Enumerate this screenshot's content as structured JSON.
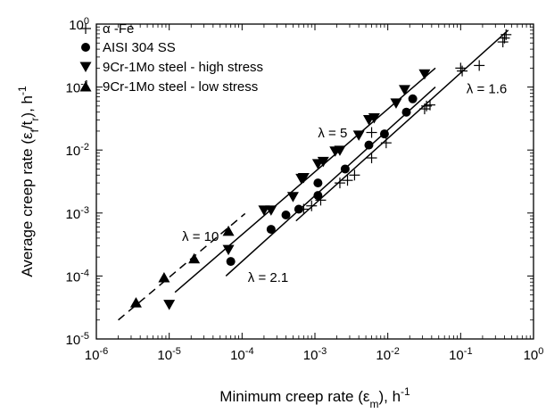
{
  "chart_data": {
    "type": "scatter",
    "xscale": "log",
    "yscale": "log",
    "xlim": [
      1e-06,
      1
    ],
    "ylim": [
      1e-05,
      1
    ],
    "grid": false,
    "legend_position": "top-left",
    "x_ticks": [
      {
        "base": "10",
        "exp": "-6",
        "value": 1e-06
      },
      {
        "base": "10",
        "exp": "-5",
        "value": 1e-05
      },
      {
        "base": "10",
        "exp": "-4",
        "value": 0.0001
      },
      {
        "base": "10",
        "exp": "-3",
        "value": 0.001
      },
      {
        "base": "10",
        "exp": "-2",
        "value": 0.01
      },
      {
        "base": "10",
        "exp": "-1",
        "value": 0.1
      },
      {
        "base": "10",
        "exp": "0",
        "value": 1
      }
    ],
    "y_ticks": [
      {
        "base": "10",
        "exp": "-5",
        "value": 1e-05
      },
      {
        "base": "10",
        "exp": "-4",
        "value": 0.0001
      },
      {
        "base": "10",
        "exp": "-3",
        "value": 0.001
      },
      {
        "base": "10",
        "exp": "-2",
        "value": 0.01
      },
      {
        "base": "10",
        "exp": "-1",
        "value": 0.1
      },
      {
        "base": "10",
        "exp": "0",
        "value": 1
      }
    ],
    "xlabel": {
      "pre": "Minimum creep rate (",
      "sym": "ε",
      "sub": "m",
      "post": "), h",
      "unit_exp": "-1"
    },
    "ylabel": {
      "pre": "Average creep rate (ε",
      "sub": "f",
      "mid": "/t",
      "sub2": "r",
      "post": "), h",
      "unit_exp": "-1"
    },
    "series": [
      {
        "name": "α -Fe",
        "marker": "plus",
        "points": [
          [
            0.0007,
            0.00115
          ],
          [
            0.0009,
            0.0013
          ],
          [
            0.0012,
            0.0016
          ],
          [
            0.0022,
            0.003
          ],
          [
            0.0028,
            0.0033
          ],
          [
            0.0035,
            0.004
          ],
          [
            0.006,
            0.0075
          ],
          [
            0.006,
            0.019
          ],
          [
            0.0095,
            0.013
          ],
          [
            0.032,
            0.045
          ],
          [
            0.034,
            0.05
          ],
          [
            0.038,
            0.052
          ],
          [
            0.1,
            0.2
          ],
          [
            0.105,
            0.18
          ],
          [
            0.18,
            0.22
          ],
          [
            0.38,
            0.52
          ],
          [
            0.4,
            0.6
          ],
          [
            0.42,
            0.68
          ]
        ]
      },
      {
        "name": "AISI 304 SS",
        "marker": "circle",
        "points": [
          [
            7e-05,
            0.00017
          ],
          [
            0.00025,
            0.00055
          ],
          [
            0.0004,
            0.00093
          ],
          [
            0.0006,
            0.00115
          ],
          [
            0.0011,
            0.003
          ],
          [
            0.0011,
            0.0019
          ],
          [
            0.0026,
            0.005
          ],
          [
            0.0055,
            0.012
          ],
          [
            0.009,
            0.018
          ],
          [
            0.018,
            0.04
          ],
          [
            0.022,
            0.065
          ]
        ]
      },
      {
        "name": "9Cr-1Mo steel - high stress",
        "marker": "triangle-down",
        "points": [
          [
            1e-05,
            3.5e-05
          ],
          [
            6.5e-05,
            0.00026
          ],
          [
            0.0002,
            0.0011
          ],
          [
            0.00025,
            0.0011
          ],
          [
            0.0005,
            0.0018
          ],
          [
            0.00065,
            0.0035
          ],
          [
            0.0007,
            0.0036
          ],
          [
            0.0011,
            0.006
          ],
          [
            0.0013,
            0.0065
          ],
          [
            0.0019,
            0.0095
          ],
          [
            0.0022,
            0.0098
          ],
          [
            0.004,
            0.017
          ],
          [
            0.0055,
            0.03
          ],
          [
            0.0065,
            0.032
          ],
          [
            0.013,
            0.055
          ],
          [
            0.017,
            0.09
          ],
          [
            0.032,
            0.16
          ]
        ]
      },
      {
        "name": "9Cr-1Mo steel - low stress",
        "marker": "triangle-up",
        "points": [
          [
            3.5e-06,
            3.8e-05
          ],
          [
            8.5e-06,
            9.5e-05
          ],
          [
            2.2e-05,
            0.00019
          ],
          [
            6.5e-05,
            0.00052
          ]
        ]
      }
    ],
    "fit_lines": [
      {
        "label": "λ = 10",
        "dash": true,
        "from": [
          2e-06,
          2e-05
        ],
        "to": [
          0.00011,
          0.00098
        ]
      },
      {
        "label": "λ = 5",
        "dash": false,
        "from": [
          1.2e-05,
          5.5e-05
        ],
        "to": [
          0.045,
          0.2
        ]
      },
      {
        "label": "λ = 2.1",
        "dash": false,
        "from": [
          6e-05,
          0.0001
        ],
        "to": [
          0.045,
          0.1
        ]
      },
      {
        "label": "λ = 1.6",
        "dash": false,
        "from": [
          0.00055,
          0.00075
        ],
        "to": [
          0.45,
          0.8
        ]
      }
    ],
    "annotations": [
      {
        "text": "λ = 10",
        "at": [
          1.5e-05,
          0.00036
        ]
      },
      {
        "text": "λ = 5",
        "at": [
          0.0011,
          0.016
        ]
      },
      {
        "text": "λ = 2.1",
        "at": [
          0.00012,
          8e-05
        ]
      },
      {
        "text": "λ = 1.6",
        "at": [
          0.12,
          0.08
        ]
      }
    ]
  }
}
